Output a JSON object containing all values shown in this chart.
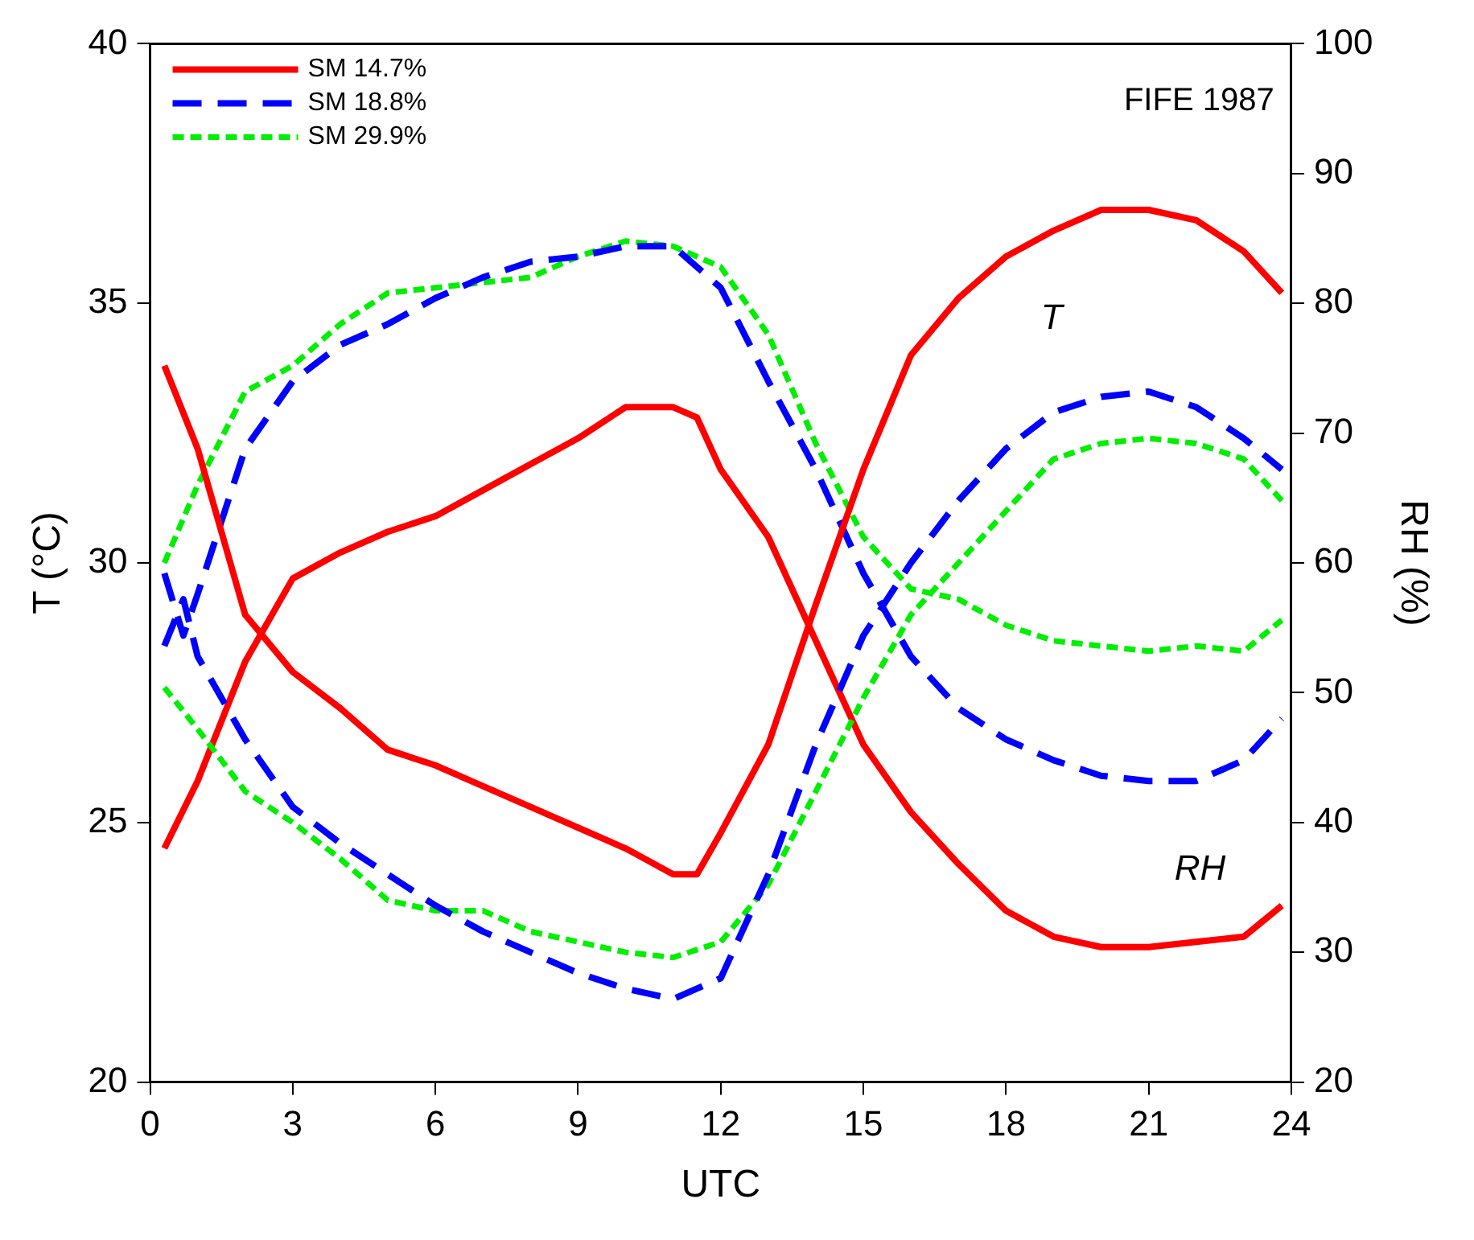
{
  "chart_data": {
    "type": "line",
    "xlabel": "UTC",
    "ylabel": "T (°C)",
    "y2label": "RH (%)",
    "xlim": [
      0,
      24
    ],
    "xticks": [
      0,
      3,
      6,
      9,
      12,
      15,
      18,
      21,
      24
    ],
    "ylim": [
      20,
      40
    ],
    "yticks": [
      20,
      25,
      30,
      35,
      40
    ],
    "y2lim": [
      20,
      100
    ],
    "y2ticks": [
      20,
      30,
      40,
      50,
      60,
      70,
      80,
      90,
      100
    ],
    "grid": false,
    "legend": "top left",
    "marker": "none",
    "annotations": [
      "FIFE 1987",
      "T",
      "RH"
    ],
    "series": [
      {
        "name": "SM 14.7%",
        "color": "#ff0000",
        "line_style": "solid",
        "x": [
          0.3,
          1,
          2,
          3,
          4,
          5,
          6,
          7,
          8,
          9,
          10,
          11,
          11.5,
          12,
          13,
          14,
          15,
          16,
          17,
          18,
          19,
          20,
          21,
          22,
          23,
          23.8
        ],
        "values": [
          33.8,
          32.2,
          29.0,
          27.9,
          27.2,
          26.4,
          26.1,
          25.7,
          25.3,
          24.9,
          24.5,
          24.0,
          24.0,
          24.8,
          26.5,
          29.2,
          31.8,
          34.0,
          35.1,
          35.9,
          36.4,
          36.8,
          36.8,
          36.6,
          36.0,
          35.2
        ]
      },
      {
        "name": "SM 18.8%",
        "color": "#0000ff",
        "line_style": "dashed",
        "x": [
          0.3,
          0.7,
          1,
          2,
          3,
          4,
          5,
          6,
          7,
          8,
          9,
          10,
          11,
          12,
          13,
          14,
          15,
          16,
          17,
          18,
          19,
          20,
          21,
          22,
          23,
          23.8
        ],
        "values": [
          28.4,
          29.3,
          28.2,
          26.6,
          25.3,
          24.6,
          24.0,
          23.4,
          22.9,
          22.5,
          22.1,
          21.8,
          21.6,
          22.0,
          24.0,
          26.5,
          28.6,
          30.0,
          31.2,
          32.2,
          32.9,
          33.2,
          33.3,
          33.0,
          32.4,
          31.8
        ]
      },
      {
        "name": "SM 29.9%",
        "color": "#00ee00",
        "line_style": "dotted",
        "x": [
          0.3,
          1,
          2,
          3,
          4,
          5,
          6,
          7,
          8,
          9,
          10,
          11,
          12,
          13,
          14,
          15,
          16,
          17,
          18,
          19,
          20,
          21,
          22,
          23,
          23.8
        ],
        "values": [
          27.6,
          26.8,
          25.6,
          25.0,
          24.3,
          23.5,
          23.3,
          23.3,
          22.9,
          22.7,
          22.5,
          22.4,
          22.7,
          23.8,
          25.6,
          27.4,
          29.0,
          30.0,
          31.0,
          32.0,
          32.3,
          32.4,
          32.3,
          32.0,
          31.2
        ]
      },
      {
        "color": "#ff0000",
        "line_style": "solid",
        "axis": "y2",
        "x": [
          0.3,
          1,
          2,
          3,
          4,
          5,
          6,
          7,
          8,
          9,
          10,
          11,
          11.5,
          12,
          13,
          14,
          15,
          16,
          17,
          18,
          19,
          20,
          21,
          22,
          23,
          23.8
        ],
        "values": [
          38,
          43.2,
          52.4,
          58.8,
          60.8,
          62.4,
          63.6,
          65.6,
          67.6,
          69.6,
          72,
          72,
          71.2,
          67.2,
          62,
          54,
          46,
          40.8,
          36.8,
          33.2,
          31.2,
          30.4,
          30.4,
          30.8,
          31.2,
          33.6
        ]
      },
      {
        "color": "#0000ff",
        "line_style": "dashed",
        "axis": "y2",
        "x": [
          0.3,
          0.7,
          1,
          2,
          3,
          4,
          5,
          6,
          7,
          8,
          9,
          10,
          11,
          12,
          13,
          14,
          15,
          16,
          17,
          18,
          19,
          20,
          21,
          22,
          23,
          23.8
        ],
        "values": [
          59.2,
          54.4,
          57.6,
          68.8,
          74,
          76.8,
          78.4,
          80.4,
          82,
          83.2,
          83.6,
          84.4,
          84.4,
          81.2,
          74,
          67.2,
          59.2,
          52.8,
          48.8,
          46.4,
          44.8,
          43.6,
          43.2,
          43.2,
          44.8,
          48
        ]
      },
      {
        "color": "#00ee00",
        "line_style": "dotted",
        "axis": "y2",
        "x": [
          0.3,
          1,
          2,
          3,
          4,
          5,
          6,
          7,
          8,
          9,
          10,
          11,
          12,
          13,
          14,
          15,
          16,
          17,
          18,
          19,
          20,
          21,
          22,
          23,
          23.8
        ],
        "values": [
          60,
          66,
          73.2,
          75.2,
          78.4,
          80.8,
          81.2,
          81.6,
          82,
          83.6,
          84.8,
          84.4,
          82.8,
          77.6,
          69.2,
          62,
          58,
          57.2,
          55.2,
          54,
          53.6,
          53.2,
          53.6,
          53.2,
          55.6
        ]
      }
    ]
  }
}
